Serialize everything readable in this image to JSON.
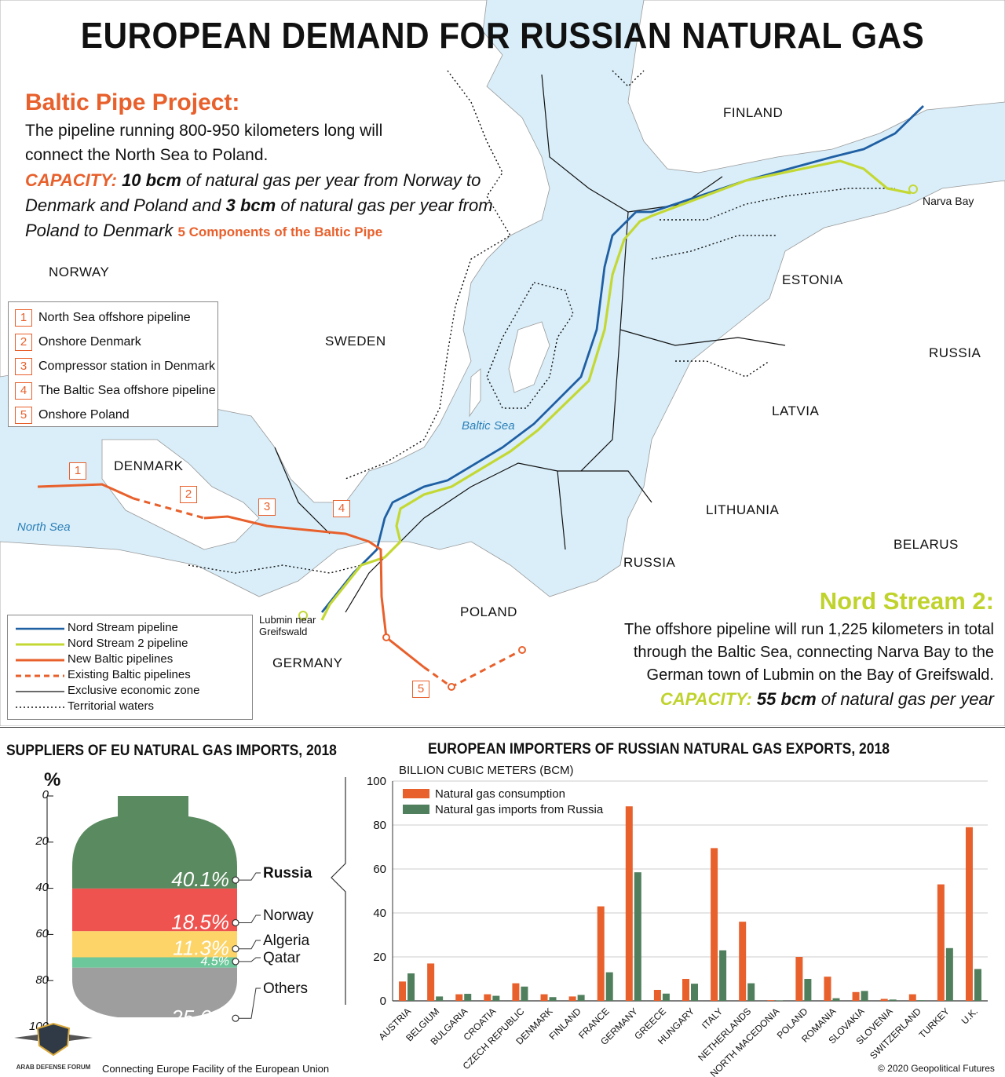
{
  "title": "EUROPEAN DEMAND FOR RUSSIAN NATURAL GAS",
  "baltic": {
    "heading": "Baltic Pipe Project:",
    "desc_line1": "The pipeline running 800-950 kilometers long will",
    "desc_line2": "connect the North Sea to Poland.",
    "cap_label": "CAPACITY:",
    "cap_a_bold": "10 bcm",
    "cap_a_rest": " of natural gas per year from Norway to",
    "cap_line2_pre": "Denmark and Poland and ",
    "cap_b_bold": "3 bcm",
    "cap_b_rest": " of natural gas per year from",
    "cap_line3": "Poland to Denmark",
    "components_label": "5 Components of the Baltic Pipe"
  },
  "components": [
    {
      "num": "1",
      "label": "North Sea offshore pipeline"
    },
    {
      "num": "2",
      "label": "Onshore Denmark"
    },
    {
      "num": "3",
      "label": "Compressor station in Denmark"
    },
    {
      "num": "4",
      "label": "The Baltic Sea offshore pipeline"
    },
    {
      "num": "5",
      "label": "Onshore Poland"
    }
  ],
  "countries": {
    "finland": "FINLAND",
    "norway": "NORWAY",
    "sweden": "SWEDEN",
    "estonia": "ESTONIA",
    "russia_east": "RUSSIA",
    "latvia": "LATVIA",
    "lithuania": "LITHUANIA",
    "belarus": "BELARUS",
    "russia_kal": "RUSSIA",
    "denmark": "DENMARK",
    "poland": "POLAND",
    "germany": "GERMANY"
  },
  "places": {
    "baltic_sea": "Baltic Sea",
    "north_sea": "North Sea",
    "narva": "Narva Bay",
    "lubmin1": "Lubmin near",
    "lubmin2": "Greifswald"
  },
  "pipe_legend": [
    {
      "label": "Nord Stream pipeline",
      "color": "#1f5fa3",
      "style": "solid"
    },
    {
      "label": "Nord Stream 2 pipeline",
      "color": "#c4d834",
      "style": "solid"
    },
    {
      "label": "New Baltic pipelines",
      "color": "#e8602c",
      "style": "solid"
    },
    {
      "label": "Existing Baltic pipelines",
      "color": "#e8602c",
      "style": "dashed"
    },
    {
      "label": "Exclusive economic zone",
      "color": "#111111",
      "style": "thin"
    },
    {
      "label": "Territorial waters",
      "color": "#111111",
      "style": "dotted"
    }
  ],
  "nord": {
    "heading": "Nord Stream 2:",
    "line1": "The offshore pipeline will run 1,225 kilometers in total",
    "line2": "through the Baltic Sea, connecting Narva Bay to the",
    "line3": "German town of Lubmin on the Bay of Greifswald.",
    "cap_label": "CAPACITY:",
    "cap_bold": "55 bcm",
    "cap_rest": " of natural gas per year"
  },
  "suppliers": {
    "title": "SUPPLIERS OF EU NATURAL GAS IMPORTS, 2018",
    "unit": "%",
    "ticks": [
      "0",
      "20",
      "40",
      "60",
      "80",
      "100"
    ],
    "items": [
      {
        "name": "Russia",
        "value": 40.1,
        "label": "40.1%",
        "color": "#5a8a5f"
      },
      {
        "name": "Norway",
        "value": 18.5,
        "label": "18.5%",
        "color": "#ef5350"
      },
      {
        "name": "Algeria",
        "value": 11.3,
        "label": "11.3%",
        "color": "#fdd467"
      },
      {
        "name": "Qatar",
        "value": 4.5,
        "label": "4.5%",
        "color": "#6cc79a"
      },
      {
        "name": "Others",
        "value": 25.6,
        "label": "25.6%",
        "color": "#9e9e9e"
      }
    ]
  },
  "chart_data": {
    "type": "bar",
    "title": "EUROPEAN IMPORTERS OF RUSSIAN NATURAL GAS EXPORTS, 2018",
    "ylabel": "BILLION CUBIC METERS (BCM)",
    "ylim": [
      0,
      100
    ],
    "yticks": [
      "0",
      "20",
      "40",
      "60",
      "80",
      "100"
    ],
    "categories": [
      "AUSTRIA",
      "BELGIUM",
      "BULGARIA",
      "CROATIA",
      "CZECH REPUBLIC",
      "DENMARK",
      "FINLAND",
      "FRANCE",
      "GERMANY",
      "GREECE",
      "HUNGARY",
      "ITALY",
      "NETHERLANDS",
      "NORTH MACEDONIA",
      "POLAND",
      "ROMANIA",
      "SLOVAKIA",
      "SLOVENIA",
      "SWITZERLAND",
      "TURKEY",
      "U.K."
    ],
    "series": [
      {
        "name": "Natural gas consumption",
        "color": "#e8602c",
        "values": [
          8.8,
          17,
          3,
          3,
          8,
          3,
          2,
          43,
          88.5,
          5,
          10,
          69.5,
          36,
          0.3,
          20,
          11,
          4,
          0.9,
          3,
          53,
          79
        ]
      },
      {
        "name": "Natural gas imports from Russia",
        "color": "#4f7f5c",
        "values": [
          12.5,
          2,
          3.2,
          2.3,
          6.5,
          1.7,
          2.7,
          13,
          58.5,
          3.3,
          7.8,
          23,
          8,
          0.2,
          10,
          1.2,
          4.5,
          0.6,
          0.3,
          24,
          14.5
        ]
      }
    ],
    "legend": "top-left"
  },
  "footer": "Connecting Europe Facility of the European Union",
  "copyright": "© 2020 Geopolitical Futures",
  "watermark": "ARAB DEFENSE FORUM"
}
